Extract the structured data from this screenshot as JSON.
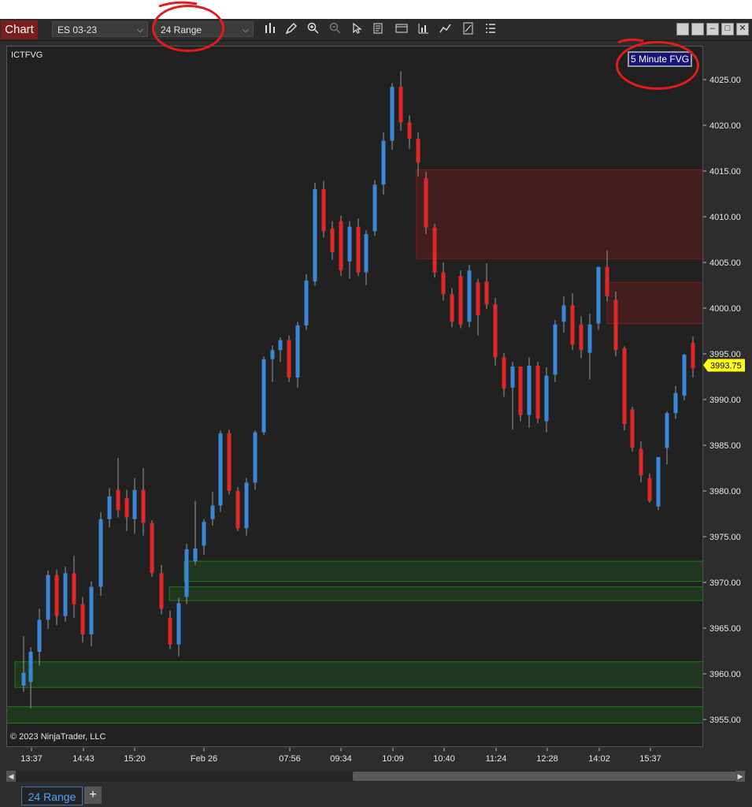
{
  "toolbar": {
    "chart_label": "Chart",
    "instrument": "ES 03-23",
    "bar_type": "24 Range",
    "tools": [
      "bar-chart-icon",
      "pencil-icon",
      "zoom-in-icon",
      "zoom-out-icon",
      "cursor-icon",
      "properties-icon",
      "data-box-icon",
      "indicators-icon",
      "strategies-icon",
      "drawing-tools-icon",
      "attach-order-icon",
      "list-icon"
    ]
  },
  "chart": {
    "indicator_label": "ICTFVG",
    "fvg_badge": "5 Minute FVG",
    "copyright": "© 2023 NinjaTrader, LLC",
    "current_price": "3993.75",
    "price_ticks": [
      "4025.00",
      "4020.00",
      "4015.00",
      "4010.00",
      "4005.00",
      "4000.00",
      "3995.00",
      "3990.00",
      "3985.00",
      "3980.00",
      "3975.00",
      "3970.00",
      "3965.00",
      "3960.00",
      "3955.00"
    ],
    "time_ticks": [
      "13:37",
      "14:43",
      "15:20",
      "Feb 26",
      "07:56",
      "09:34",
      "10:09",
      "10:40",
      "11:24",
      "12:28",
      "14:02",
      "15:37"
    ],
    "colors": {
      "up": "#3b86d6",
      "down": "#e02828",
      "bg": "#212121",
      "fvg_bear": "#8b1a1a",
      "fvg_bull": "#1c7a1c"
    }
  },
  "tabs": {
    "active": "24 Range"
  }
}
